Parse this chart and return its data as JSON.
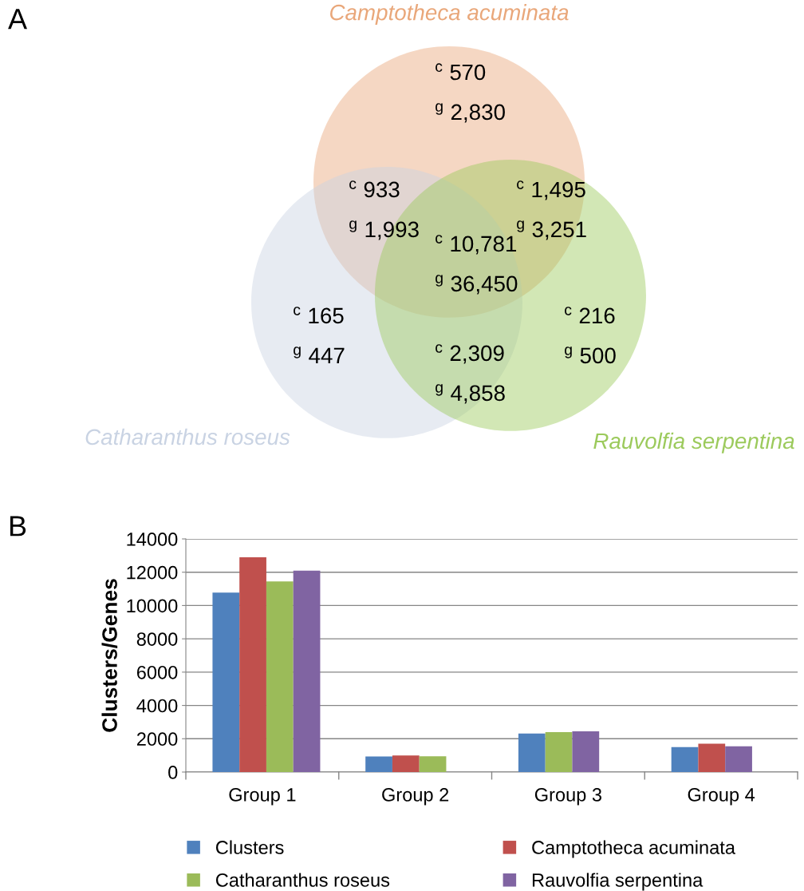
{
  "chart_data": [
    {
      "type": "other",
      "title": "A",
      "colors": [
        "#e9a77a",
        "#c9d3e3",
        "#9cca5c"
      ],
      "annotations": [
        "Camptotheca acuminata",
        "Catharanthus roseus",
        "Rauvolfia serpentina",
        "$^{c}$ 570",
        "$^{g}$ 2,830",
        "$^{c}$ 933",
        "$^{g}$ 1,993",
        "$^{c}$ 1,495",
        "$^{g}$ 3,251",
        "$^{c}$ 10,781",
        "$^{g}$ 36,450",
        "$^{c}$ 165",
        "$^{g}$ 447",
        "$^{c}$ 2,309",
        "$^{g}$ 4,858",
        "$^{c}$ 216",
        "$^{g}$ 500"
      ]
    },
    {
      "type": "bar",
      "title": "B",
      "ylabel": "Clusters/Genes",
      "categories": [
        "Group 1",
        "Group 2",
        "Group 3",
        "Group 4"
      ],
      "ylim": [
        0,
        14000
      ],
      "yticks": [
        0,
        2000,
        4000,
        6000,
        8000,
        10000,
        12000,
        14000
      ],
      "grid": "y",
      "legend": "bottom",
      "series": [
        {
          "name": "Clusters",
          "color": "#4f81bd",
          "values": [
            10781,
            933,
            2309,
            1495
          ]
        },
        {
          "name": "Camptotheca acuminata",
          "color": "#c0504d",
          "values": [
            12900,
            1000,
            null,
            1700
          ]
        },
        {
          "name": "Catharanthus roseus",
          "color": "#9bbb59",
          "values": [
            11450,
            950,
            2400,
            null
          ]
        },
        {
          "name": "Rauvolfia serpentina",
          "color": "#8064a2",
          "values": [
            12100,
            null,
            2450,
            1550
          ]
        }
      ]
    }
  ]
}
